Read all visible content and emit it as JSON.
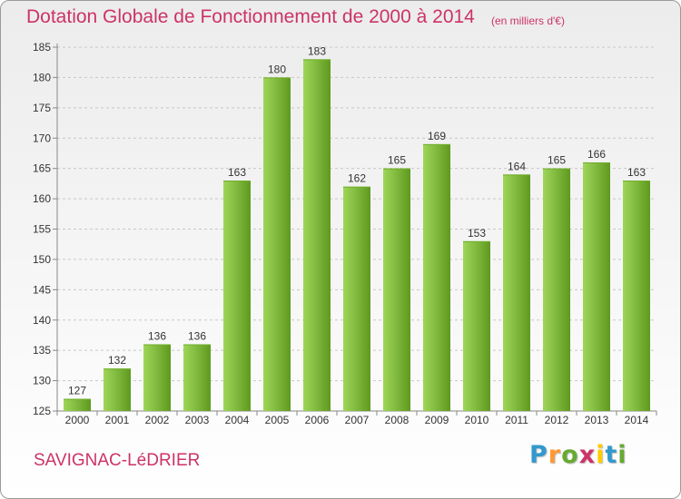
{
  "title": "Dotation Globale de Fonctionnement de 2000 à 2014",
  "unit_note": "(en milliers d'€)",
  "commune": "SAVIGNAC-LéDRIER",
  "logo": {
    "letters": [
      "P",
      "r",
      "o",
      "x",
      "i",
      "t",
      "i"
    ],
    "colors": [
      "#3399cc",
      "#ff9933",
      "#66aa33",
      "#cc3366",
      "#ffcc00",
      "#3399cc",
      "#66aa33"
    ]
  },
  "colors": {
    "bar_light": "#9fd65a",
    "bar_dark": "#5e9a1e",
    "title": "#cc3366"
  },
  "chart_data": {
    "type": "bar",
    "title": "Dotation Globale de Fonctionnement de 2000 à 2014",
    "xlabel": "",
    "ylabel": "",
    "categories": [
      "2000",
      "2001",
      "2002",
      "2003",
      "2004",
      "2005",
      "2006",
      "2007",
      "2008",
      "2009",
      "2010",
      "2011",
      "2012",
      "2013",
      "2014"
    ],
    "values": [
      127,
      132,
      136,
      136,
      163,
      180,
      183,
      162,
      165,
      169,
      153,
      164,
      165,
      166,
      163
    ],
    "ylim": [
      125,
      185
    ],
    "yticks": [
      125,
      130,
      135,
      140,
      145,
      150,
      155,
      160,
      165,
      170,
      175,
      180,
      185
    ],
    "grid": "horizontal dashed"
  }
}
